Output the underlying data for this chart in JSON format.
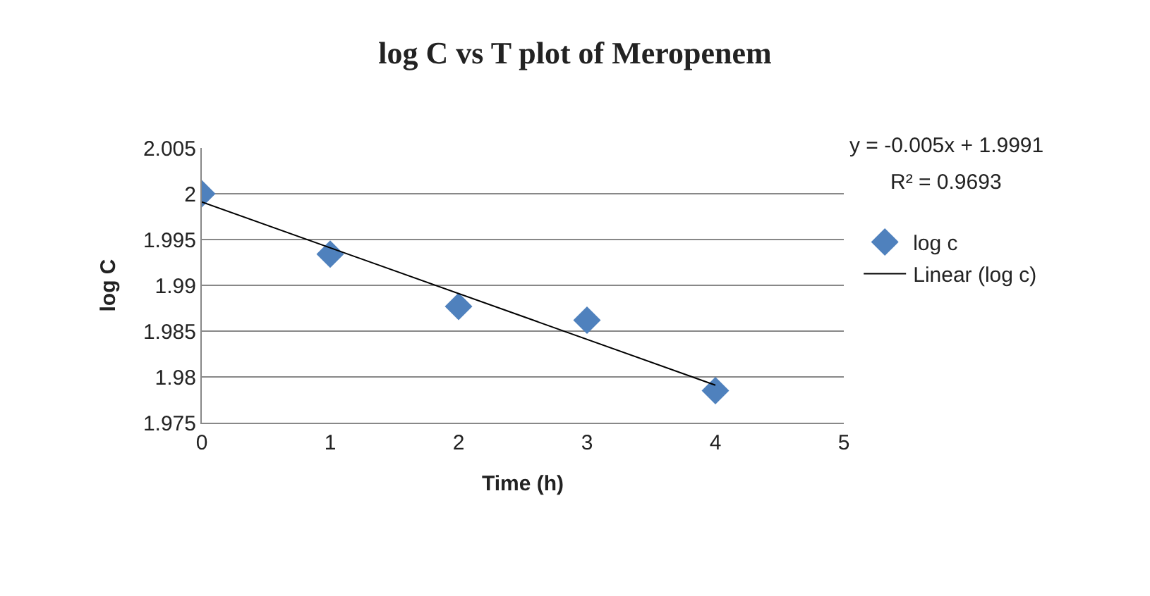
{
  "chart_data": {
    "type": "scatter",
    "title": "log C vs T plot of Meropenem",
    "xlabel": "Time (h)",
    "ylabel": "log C",
    "x": [
      0,
      1,
      2,
      3,
      4
    ],
    "series": [
      {
        "name": "log c",
        "color": "#4f81bd",
        "values": [
          2.0,
          1.9934,
          1.9877,
          1.9862,
          1.9785
        ],
        "marker": "diamond"
      },
      {
        "name": "Linear (log c)",
        "type": "line",
        "color": "#000000",
        "x": [
          0,
          4
        ],
        "values": [
          1.9991,
          1.9791
        ],
        "marker": "none",
        "line_style": "solid"
      }
    ],
    "annotations": [
      "y = -0.005x + 1.9991",
      "R² = 0.9693"
    ],
    "xlim": [
      0,
      5
    ],
    "xticks": [
      0,
      1,
      2,
      3,
      4,
      5
    ],
    "ylim": [
      1.975,
      2.005
    ],
    "yticks": [
      1.975,
      1.98,
      1.985,
      1.99,
      1.995,
      2,
      2.005
    ],
    "grid": "y",
    "legend": "right"
  }
}
